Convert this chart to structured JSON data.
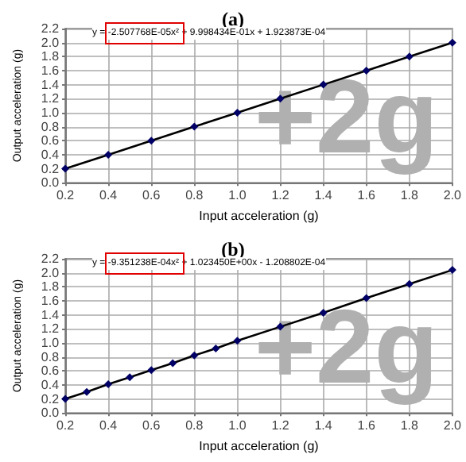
{
  "chart_data": [
    {
      "type": "line",
      "title": "(a)",
      "xlabel": "Input acceleration (g)",
      "ylabel": "Output acceleration (g)",
      "annotations": [
        "y = -2.507768E-05x² + 9.998434E-01x + 1.923873E-04",
        "+2g"
      ],
      "x": [
        0.2,
        0.4,
        0.6,
        0.8,
        1.0,
        1.2,
        1.4,
        1.6,
        1.8,
        2.0
      ],
      "series": [
        {
          "color": "#000000",
          "values": [
            0.2,
            0.4,
            0.6,
            0.8,
            1.0,
            1.2,
            1.4,
            1.6,
            1.8,
            2.0
          ]
        }
      ],
      "xlim": [
        0.2,
        2.0
      ],
      "xticks": [
        {
          "value": 0.2,
          "label": "0.2"
        },
        {
          "value": 0.4,
          "label": "0.4"
        },
        {
          "value": 0.6,
          "label": "0.6"
        },
        {
          "value": 0.8,
          "label": "0.8"
        },
        {
          "value": 1.0,
          "label": "1.0"
        },
        {
          "value": 1.2,
          "label": "1.2"
        },
        {
          "value": 1.4,
          "label": "1.4"
        },
        {
          "value": 1.6,
          "label": "1.6"
        },
        {
          "value": 1.8,
          "label": "1.8"
        },
        {
          "value": 2.0,
          "label": "2.0"
        }
      ],
      "ylim": [
        0,
        2.2
      ],
      "yticks": [
        {
          "value": 0,
          "label": "0.0"
        },
        {
          "value": 0.2,
          "label": "0.2"
        },
        {
          "value": 0.4,
          "label": "0.4"
        },
        {
          "value": 0.6,
          "label": "0.6"
        },
        {
          "value": 0.8,
          "label": "0.8"
        },
        {
          "value": 1.0,
          "label": "1.0"
        },
        {
          "value": 1.2,
          "label": "1.2"
        },
        {
          "value": 1.4,
          "label": "1.4"
        },
        {
          "value": 1.6,
          "label": "1.6"
        },
        {
          "value": 1.8,
          "label": "1.8"
        },
        {
          "value": 2.0,
          "label": "2.0"
        },
        {
          "value": 2.2,
          "label": "2.2"
        }
      ],
      "grid": true,
      "marker": "diamond",
      "line_style": "solid"
    },
    {
      "type": "line",
      "title": "(b)",
      "xlabel": "Input acceleration (g)",
      "ylabel": "Output acceleration (g)",
      "annotations": [
        "y = -9.351238E-04x² + 1.023450E+00x - 1.208802E-04",
        "+2g"
      ],
      "x": [
        0.2,
        0.3,
        0.4,
        0.5,
        0.6,
        0.7,
        0.8,
        0.9,
        1.0,
        1.2,
        1.4,
        1.6,
        1.8,
        2.0
      ],
      "series": [
        {
          "color": "#000000",
          "values": [
            0.2,
            0.3,
            0.41,
            0.51,
            0.61,
            0.71,
            0.82,
            0.92,
            1.03,
            1.23,
            1.43,
            1.64,
            1.84,
            2.04
          ]
        }
      ],
      "xlim": [
        0.2,
        2.0
      ],
      "xticks": [
        {
          "value": 0.2,
          "label": "0.2"
        },
        {
          "value": 0.4,
          "label": "0.4"
        },
        {
          "value": 0.6,
          "label": "0.6"
        },
        {
          "value": 0.8,
          "label": "0.8"
        },
        {
          "value": 1.0,
          "label": "1.0"
        },
        {
          "value": 1.2,
          "label": "1.2"
        },
        {
          "value": 1.4,
          "label": "1.4"
        },
        {
          "value": 1.6,
          "label": "1.6"
        },
        {
          "value": 1.8,
          "label": "1.8"
        },
        {
          "value": 2.0,
          "label": "2.0"
        }
      ],
      "ylim": [
        0,
        2.2
      ],
      "yticks": [
        {
          "value": 0,
          "label": "0.0"
        },
        {
          "value": 0.2,
          "label": "0.2"
        },
        {
          "value": 0.4,
          "label": "0.4"
        },
        {
          "value": 0.6,
          "label": "0.6"
        },
        {
          "value": 0.8,
          "label": "0.8"
        },
        {
          "value": 1.0,
          "label": "1.0"
        },
        {
          "value": 1.2,
          "label": "1.2"
        },
        {
          "value": 1.4,
          "label": "1.4"
        },
        {
          "value": 1.6,
          "label": "1.6"
        },
        {
          "value": 1.8,
          "label": "1.8"
        },
        {
          "value": 2.0,
          "label": "2.0"
        },
        {
          "value": 2.2,
          "label": "2.2"
        }
      ],
      "grid": true,
      "marker": "diamond",
      "line_style": "solid"
    }
  ]
}
